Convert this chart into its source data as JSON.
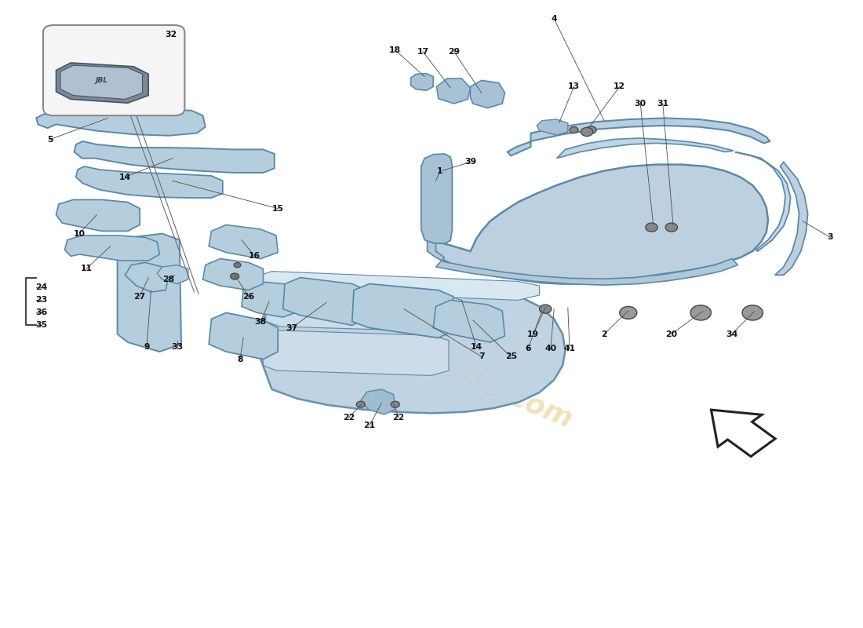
{
  "bg": "#ffffff",
  "pf": "#b8cfe0",
  "pe": "#5a8aaa",
  "pf2": "#a8c2d5",
  "lc": "#555555",
  "tc": "#111111",
  "wm": "passion4parts.com",
  "wm_color": "#c8a000",
  "wm_alpha": 0.28
}
